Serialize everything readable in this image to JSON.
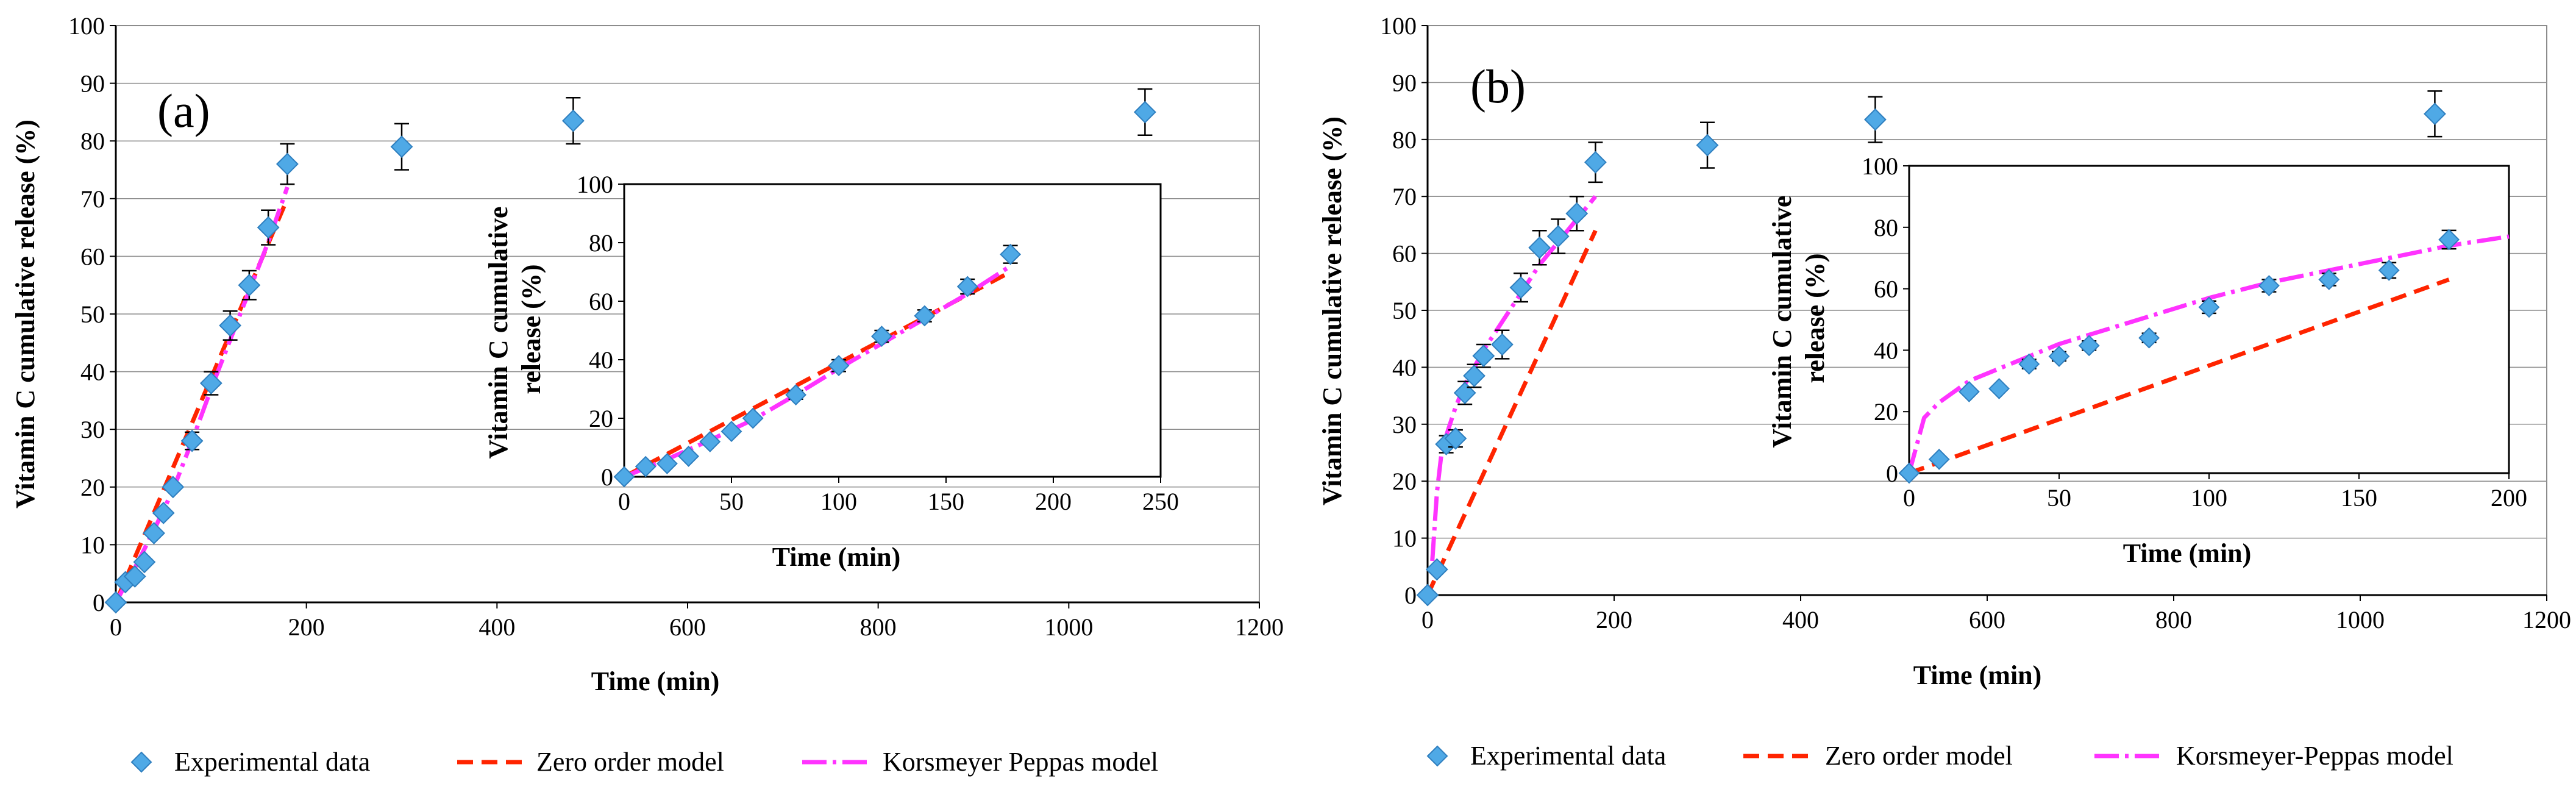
{
  "colors": {
    "experimental": "#4fa9e6",
    "experimental_edge": "#2f7fbf",
    "zero_order": "#ff2400",
    "kp": "#ff33ff",
    "axis": "#000000",
    "grid": "#8c8c8c"
  },
  "legend_a": {
    "experimental": "Experimental data",
    "zero_order": "Zero order model",
    "kp": "Korsmeyer Peppas model"
  },
  "legend_b": {
    "experimental": "Experimental data",
    "zero_order": "Zero order model",
    "kp": "Korsmeyer-Peppas model"
  },
  "chart_data": [
    {
      "id": "a-main",
      "type": "scatter",
      "panel_label": "(a)",
      "xlabel": "Time (min)",
      "ylabel": "Vitamin C cumulative release (%)",
      "xlim": [
        0,
        1200
      ],
      "ylim": [
        0,
        100
      ],
      "xticks": [
        "0",
        "200",
        "400",
        "600",
        "800",
        "1000",
        "1200"
      ],
      "yticks": [
        "0",
        "10",
        "20",
        "30",
        "40",
        "50",
        "60",
        "70",
        "80",
        "90",
        "100"
      ],
      "grid": "horizontal",
      "series": [
        {
          "name": "Experimental data",
          "kind": "markers",
          "x": [
            0,
            10,
            20,
            30,
            40,
            50,
            60,
            80,
            100,
            120,
            140,
            160,
            180,
            300,
            480,
            1080
          ],
          "y": [
            0,
            3.5,
            4.5,
            7,
            12,
            15.5,
            20,
            28,
            38,
            48,
            55,
            65,
            76,
            79,
            83.5,
            85
          ],
          "err": [
            0.4,
            0.5,
            0.5,
            0.8,
            1,
            1,
            1,
            1.5,
            2,
            2.5,
            2.5,
            3,
            3.5,
            4,
            4,
            4
          ]
        },
        {
          "name": "Zero order model",
          "kind": "dashed",
          "x": [
            0,
            180
          ],
          "y": [
            0,
            70
          ]
        },
        {
          "name": "Korsmeyer Peppas model",
          "kind": "dashdot",
          "x": [
            0,
            20,
            40,
            60,
            80,
            100,
            120,
            140,
            160,
            180
          ],
          "y": [
            0,
            6,
            12.5,
            19.5,
            28,
            37,
            45.5,
            54,
            62.5,
            72
          ]
        }
      ]
    },
    {
      "id": "a-inset",
      "type": "scatter",
      "xlabel": "Time (min)",
      "ylabel": "Vitamin C cumulative release (%)",
      "xlim": [
        0,
        250
      ],
      "ylim": [
        0,
        100
      ],
      "xticks": [
        "0",
        "50",
        "100",
        "150",
        "200",
        "250"
      ],
      "yticks": [
        "0",
        "20",
        "40",
        "60",
        "80",
        "100"
      ],
      "grid": "none",
      "series": [
        {
          "name": "Experimental data",
          "kind": "markers",
          "x": [
            0,
            10,
            20,
            30,
            40,
            50,
            60,
            80,
            100,
            120,
            140,
            160,
            180
          ],
          "y": [
            0,
            3.5,
            4.5,
            7,
            12,
            15.5,
            20,
            28,
            38,
            48,
            55,
            65,
            76
          ],
          "err": [
            0.4,
            0.5,
            0.5,
            0.8,
            1,
            1,
            1,
            1.5,
            2,
            2,
            2,
            2.5,
            3
          ]
        },
        {
          "name": "Zero order model",
          "kind": "dashed",
          "x": [
            0,
            180
          ],
          "y": [
            0,
            70
          ]
        },
        {
          "name": "Korsmeyer Peppas model",
          "kind": "dashdot",
          "x": [
            0,
            20,
            40,
            60,
            80,
            100,
            120,
            140,
            160,
            180
          ],
          "y": [
            0,
            6,
            12.5,
            19.5,
            28,
            37,
            45.5,
            54,
            62.5,
            72
          ]
        }
      ]
    },
    {
      "id": "b-main",
      "type": "scatter",
      "panel_label": "(b)",
      "xlabel": "Time (min)",
      "ylabel": "Vitamin C cumulative release (%)",
      "xlim": [
        0,
        1200
      ],
      "ylim": [
        0,
        100
      ],
      "xticks": [
        "0",
        "200",
        "400",
        "600",
        "800",
        "1000",
        "1200"
      ],
      "yticks": [
        "0",
        "10",
        "20",
        "30",
        "40",
        "50",
        "60",
        "70",
        "80",
        "90",
        "100"
      ],
      "grid": "horizontal",
      "series": [
        {
          "name": "Experimental data",
          "kind": "markers",
          "x": [
            0,
            10,
            20,
            30,
            40,
            50,
            60,
            80,
            100,
            120,
            140,
            160,
            180,
            300,
            480,
            1080
          ],
          "y": [
            0,
            4.5,
            26.5,
            27.5,
            35.5,
            38.5,
            42,
            44,
            54,
            61,
            63,
            67,
            76,
            79,
            83.5,
            84.5
          ],
          "err": [
            0.5,
            0.8,
            1.5,
            1.5,
            2,
            2,
            2,
            2.5,
            2.5,
            3,
            3,
            3,
            3.5,
            4,
            4,
            4
          ]
        },
        {
          "name": "Zero order model",
          "kind": "dashed",
          "x": [
            0,
            180
          ],
          "y": [
            0,
            64
          ]
        },
        {
          "name": "Korsmeyer-Peppas model",
          "kind": "dashdot",
          "x": [
            5,
            10,
            15,
            20,
            30,
            40,
            50,
            60,
            80,
            100,
            120,
            140,
            160,
            180
          ],
          "y": [
            6,
            18,
            25,
            28,
            33,
            37,
            40,
            43,
            48,
            53,
            58,
            62,
            66,
            70
          ]
        }
      ]
    },
    {
      "id": "b-inset",
      "type": "scatter",
      "xlabel": "Time (min)",
      "ylabel": "Vitamin C cumulative release (%)",
      "xlim": [
        0,
        200
      ],
      "ylim": [
        0,
        100
      ],
      "xticks": [
        "0",
        "50",
        "100",
        "150",
        "200"
      ],
      "yticks": [
        "0",
        "20",
        "40",
        "60",
        "80",
        "100"
      ],
      "grid": "none",
      "series": [
        {
          "name": "Experimental data",
          "kind": "markers",
          "x": [
            0,
            10,
            20,
            30,
            40,
            50,
            60,
            80,
            100,
            120,
            140,
            160,
            180
          ],
          "y": [
            0,
            4.5,
            26.5,
            27.5,
            35.5,
            38,
            41.5,
            44,
            54,
            61,
            63,
            66,
            76
          ],
          "err": [
            0.4,
            0.5,
            1,
            1,
            1.5,
            1.5,
            1.5,
            1.5,
            2,
            2,
            2,
            2.5,
            3
          ]
        },
        {
          "name": "Zero order model",
          "kind": "dashed",
          "x": [
            0,
            180
          ],
          "y": [
            0,
            63
          ]
        },
        {
          "name": "Korsmeyer-Peppas model",
          "kind": "dashdot",
          "x": [
            0,
            5,
            10,
            20,
            30,
            40,
            50,
            60,
            80,
            100,
            120,
            140,
            160,
            180,
            200
          ],
          "y": [
            0,
            18,
            23,
            30,
            34,
            38,
            42,
            45,
            51,
            57,
            62,
            66,
            70,
            74,
            77
          ]
        }
      ]
    }
  ]
}
